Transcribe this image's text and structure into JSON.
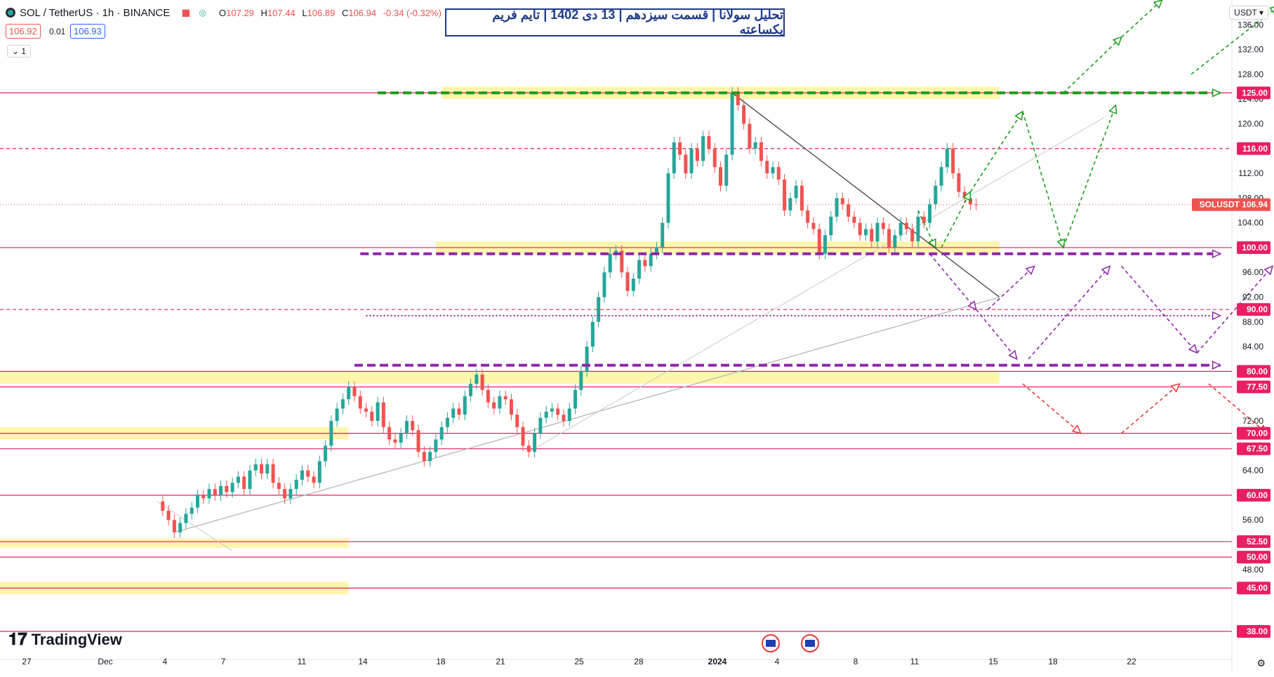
{
  "header": {
    "symbol": "SOL / TetherUS · 1h · BINANCE",
    "open_label": "O",
    "open": "107.29",
    "high_label": "H",
    "high": "107.44",
    "low_label": "L",
    "low": "106.89",
    "close_label": "C",
    "close": "106.94",
    "change": "-0.34 (-0.32%)",
    "bid": "106.92",
    "spread": "0.01",
    "ask": "106.93",
    "collapse_count": "1",
    "currency": "USDT"
  },
  "title": "تحلیل سولانا | قسمت سیزدهم | 13 دی 1402 | تایم فریم یکساعته",
  "branding": "TradingView",
  "colors": {
    "up": "#26a69a",
    "down": "#ef5350",
    "level_line": "#e91e63",
    "zone_fill": "#fff59d",
    "green_arrow": "#1a9b1a",
    "purple_arrow": "#8e24aa",
    "red_arrow": "#e53935",
    "title_border": "#1e3a8a"
  },
  "chart_data": {
    "type": "candlestick",
    "symbol": "SOLUSDT",
    "last_price": 106.94,
    "last_price_label": "SOLUSDT 106.94",
    "price_axis_labels": [
      "136.00",
      "132.00",
      "128.00",
      "124.00",
      "120.00",
      "112.00",
      "108.00",
      "104.00",
      "96.00",
      "92.00",
      "88.00",
      "84.00",
      "72.00",
      "64.00",
      "56.00",
      "48.00"
    ],
    "highlighted_levels": [
      125,
      116,
      100,
      90,
      80,
      77.5,
      70,
      67.5,
      60,
      52.5,
      50,
      45,
      38
    ],
    "highlighted_labels": [
      "125.00",
      "116.00",
      "100.00",
      "90.00",
      "80.00",
      "77.50",
      "70.00",
      "67.50",
      "60.00",
      "52.50",
      "50.00",
      "45.00",
      "38.00"
    ],
    "dashed_levels": [
      116,
      90
    ],
    "x_ticks": [
      "27",
      "Dec",
      "4",
      "7",
      "11",
      "14",
      "18",
      "21",
      "25",
      "28",
      "2024",
      "4",
      "8",
      "11",
      "15",
      "18",
      "22"
    ],
    "price_path": [
      [
        27,
        59
      ],
      [
        28,
        57.5
      ],
      [
        29,
        56
      ],
      [
        30,
        54
      ],
      [
        31,
        55.5
      ],
      [
        32,
        57
      ],
      [
        33,
        58
      ],
      [
        34,
        60
      ],
      [
        35,
        59.5
      ],
      [
        36,
        61
      ],
      [
        37,
        60
      ],
      [
        38,
        61.5
      ],
      [
        39,
        60.5
      ],
      [
        40,
        62
      ],
      [
        41,
        63
      ],
      [
        42,
        61
      ],
      [
        43,
        64
      ],
      [
        44,
        65
      ],
      [
        45,
        63.5
      ],
      [
        46,
        65
      ],
      [
        47,
        62
      ],
      [
        48,
        61
      ],
      [
        49,
        59.5
      ],
      [
        50,
        61
      ],
      [
        51,
        62.5
      ],
      [
        52,
        64
      ],
      [
        53,
        63
      ],
      [
        54,
        62
      ],
      [
        55,
        65.5
      ],
      [
        56,
        68
      ],
      [
        57,
        72
      ],
      [
        58,
        74
      ],
      [
        59,
        75.5
      ],
      [
        60,
        77.5
      ],
      [
        61,
        76
      ],
      [
        62,
        74
      ],
      [
        63,
        73.5
      ],
      [
        64,
        72
      ],
      [
        65,
        75
      ],
      [
        66,
        71
      ],
      [
        67,
        69
      ],
      [
        68,
        68.5
      ],
      [
        69,
        70
      ],
      [
        70,
        72
      ],
      [
        71,
        70.5
      ],
      [
        72,
        67
      ],
      [
        73,
        65.5
      ],
      [
        74,
        67
      ],
      [
        75,
        69
      ],
      [
        76,
        71
      ],
      [
        77,
        72.5
      ],
      [
        78,
        74
      ],
      [
        79,
        73
      ],
      [
        80,
        76
      ],
      [
        81,
        78
      ],
      [
        82,
        79.5
      ],
      [
        83,
        77
      ],
      [
        84,
        75
      ],
      [
        85,
        74
      ],
      [
        86,
        76
      ],
      [
        87,
        75.5
      ],
      [
        88,
        73
      ],
      [
        89,
        71
      ],
      [
        90,
        68
      ],
      [
        91,
        67
      ],
      [
        92,
        70
      ],
      [
        93,
        72.5
      ],
      [
        94,
        73.5
      ],
      [
        95,
        74
      ],
      [
        96,
        73
      ],
      [
        97,
        72
      ],
      [
        98,
        74
      ],
      [
        99,
        77
      ],
      [
        100,
        80
      ],
      [
        101,
        84
      ],
      [
        102,
        88
      ],
      [
        103,
        92
      ],
      [
        104,
        96
      ],
      [
        105,
        99
      ],
      [
        106,
        99.5
      ],
      [
        107,
        96
      ],
      [
        108,
        93
      ],
      [
        109,
        95
      ],
      [
        110,
        98
      ],
      [
        111,
        97
      ],
      [
        112,
        99
      ],
      [
        113,
        100
      ],
      [
        114,
        104
      ],
      [
        115,
        112
      ],
      [
        116,
        117
      ],
      [
        117,
        115
      ],
      [
        118,
        112
      ],
      [
        119,
        116
      ],
      [
        120,
        114
      ],
      [
        121,
        118
      ],
      [
        122,
        116
      ],
      [
        123,
        113
      ],
      [
        124,
        110
      ],
      [
        125,
        115
      ],
      [
        126,
        125
      ],
      [
        127,
        123
      ],
      [
        128,
        120
      ],
      [
        129,
        116
      ],
      [
        130,
        117
      ],
      [
        131,
        114
      ],
      [
        132,
        112
      ],
      [
        133,
        113
      ],
      [
        134,
        111
      ],
      [
        135,
        106
      ],
      [
        136,
        108
      ],
      [
        137,
        110
      ],
      [
        138,
        106
      ],
      [
        139,
        104
      ],
      [
        140,
        103
      ],
      [
        141,
        99
      ],
      [
        142,
        102
      ],
      [
        143,
        105
      ],
      [
        144,
        108
      ],
      [
        145,
        107
      ],
      [
        146,
        105
      ],
      [
        147,
        104
      ],
      [
        148,
        102
      ],
      [
        149,
        103
      ],
      [
        150,
        101
      ],
      [
        151,
        104
      ],
      [
        152,
        103
      ],
      [
        153,
        100
      ],
      [
        154,
        102
      ],
      [
        155,
        104
      ],
      [
        156,
        103
      ],
      [
        157,
        101
      ],
      [
        158,
        105
      ],
      [
        159,
        104
      ],
      [
        160,
        107
      ],
      [
        161,
        110
      ],
      [
        162,
        113
      ],
      [
        163,
        116
      ],
      [
        164,
        112
      ],
      [
        165,
        109
      ],
      [
        166,
        108
      ],
      [
        167,
        107
      ],
      [
        168,
        106.94
      ]
    ],
    "resistance_trendline": [
      [
        126,
        125
      ],
      [
        172,
        92
      ]
    ],
    "support_trendline_long": [
      [
        30,
        54
      ],
      [
        172,
        92
      ]
    ],
    "support_trendline_short": [
      [
        91,
        67
      ],
      [
        190,
        121
      ]
    ],
    "aux_line": [
      [
        27,
        59
      ],
      [
        40,
        51
      ]
    ],
    "zones": [
      [
        76,
        172,
        124,
        126
      ],
      [
        75,
        172,
        99,
        101
      ],
      [
        0,
        172,
        78,
        80
      ],
      [
        0,
        60,
        69,
        71
      ],
      [
        0,
        60,
        51.5,
        53
      ],
      [
        0,
        60,
        44,
        46
      ]
    ],
    "scenario_arrows": {
      "green": [
        [
          [
            158,
            106
          ],
          [
            161,
            100
          ]
        ],
        [
          [
            162,
            100
          ],
          [
            167,
            109
          ]
        ],
        [
          [
            167,
            109
          ],
          [
            176,
            122
          ]
        ],
        [
          [
            176,
            122
          ],
          [
            183,
            100
          ]
        ],
        [
          [
            183,
            100
          ],
          [
            192,
            123
          ]
        ],
        [
          [
            183,
            125
          ],
          [
            193,
            134
          ]
        ],
        [
          [
            193,
            134
          ],
          [
            200,
            140
          ]
        ],
        [
          [
            205,
            128
          ],
          [
            220,
            139
          ]
        ]
      ],
      "purple": [
        [
          [
            160,
            99
          ],
          [
            168,
            90
          ]
        ],
        [
          [
            168,
            90
          ],
          [
            175,
            82
          ]
        ],
        [
          [
            170,
            90
          ],
          [
            178,
            97
          ]
        ],
        [
          [
            177,
            82
          ],
          [
            191,
            97
          ]
        ],
        [
          [
            193,
            97
          ],
          [
            206,
            83
          ]
        ],
        [
          [
            206,
            83
          ],
          [
            219,
            97
          ]
        ]
      ],
      "red": [
        [
          [
            176,
            78
          ],
          [
            186,
            70
          ]
        ],
        [
          [
            193,
            70
          ],
          [
            203,
            78
          ]
        ],
        [
          [
            208,
            78
          ],
          [
            218,
            70
          ]
        ]
      ],
      "thick_green_line": [
        [
          65,
          125
        ],
        [
          210,
          125
        ]
      ],
      "thick_purple_lines": [
        [
          [
            62,
            99
          ],
          [
            210,
            99
          ]
        ],
        [
          [
            61,
            81
          ],
          [
            210,
            81
          ]
        ]
      ],
      "dotted_purple": [
        [
          63,
          89
        ],
        [
          210,
          89
        ]
      ]
    },
    "ylim": [
      38,
      140
    ],
    "xlim": [
      0,
      212
    ]
  }
}
